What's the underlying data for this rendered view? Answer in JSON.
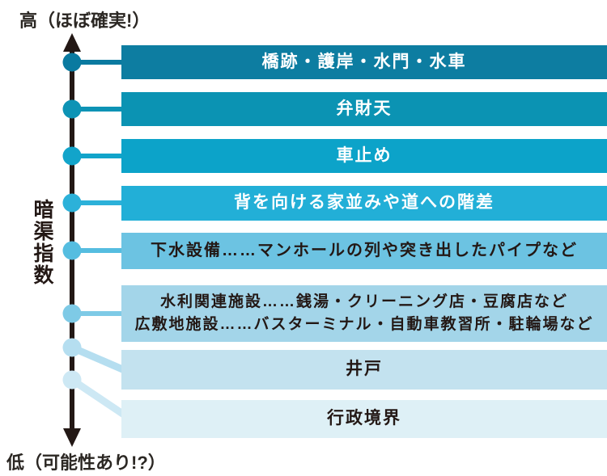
{
  "axis": {
    "high_label": "高（ほぼ確実!）",
    "low_label": "低（可能性あり!?）",
    "title": "暗渠指数",
    "line_color": "#231815"
  },
  "items": [
    {
      "rank": 1,
      "lines": [
        "橋跡・護岸・水門・水車"
      ],
      "bar_color": "#0d7da1",
      "text_color": "#ffffff",
      "dot_color": "#0a7aa0"
    },
    {
      "rank": 2,
      "lines": [
        "弁財天"
      ],
      "bar_color": "#0b93b3",
      "text_color": "#ffffff",
      "dot_color": "#0d93b5"
    },
    {
      "rank": 3,
      "lines": [
        "車止め"
      ],
      "bar_color": "#0ca3c9",
      "text_color": "#ffffff",
      "dot_color": "#12a4ca"
    },
    {
      "rank": 4,
      "lines": [
        "背を向ける家並みや道への階差"
      ],
      "bar_color": "#22afd7",
      "text_color": "#ffffff",
      "dot_color": "#2cb1d9"
    },
    {
      "rank": 5,
      "lines": [
        "下水設備……マンホールの列や突き出したパイプなど"
      ],
      "bar_color": "#6cc3e2",
      "text_color": "#231815",
      "dot_color": "#55bde0"
    },
    {
      "rank": 6,
      "lines": [
        "水利関連施設……銭湯・クリーニング店・豆腐店など",
        "広敷地施設……バスターミナル・自動車教習所・駐輪場など"
      ],
      "bar_color": "#a3d5e9",
      "text_color": "#231815",
      "dot_color": "#7ecae6"
    },
    {
      "rank": 7,
      "lines": [
        "井戸"
      ],
      "bar_color": "#c3e2ef",
      "text_color": "#231815",
      "dot_color": "#b5def0"
    },
    {
      "rank": 8,
      "lines": [
        "行政境界"
      ],
      "bar_color": "#def0f6",
      "text_color": "#231815",
      "dot_color": "#cde8f4"
    }
  ]
}
